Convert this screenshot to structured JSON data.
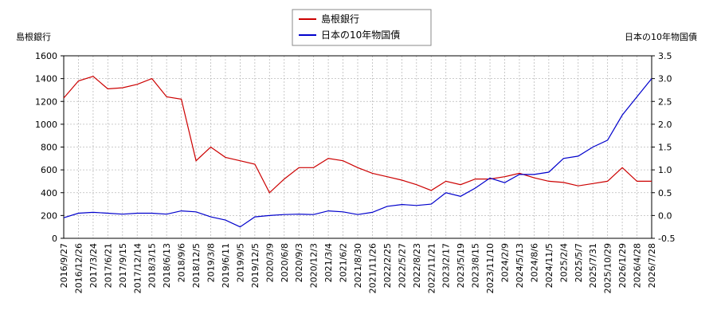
{
  "chart_data": {
    "type": "line",
    "y_label": "島根銀行",
    "y2_label": "日本の10年物国債",
    "categories": [
      "2016/9/27",
      "2016/12/26",
      "2017/3/24",
      "2017/6/21",
      "2017/9/15",
      "2017/12/14",
      "2018/3/15",
      "2018/6/13",
      "2018/9/6",
      "2018/12/5",
      "2019/3/8",
      "2019/6/11",
      "2019/9/5",
      "2019/12/5",
      "2020/3/9",
      "2020/6/8",
      "2020/9/3",
      "2020/12/3",
      "2021/3/4",
      "2021/6/2",
      "2021/8/30",
      "2021/11/26",
      "2022/2/25",
      "2022/5/27",
      "2022/8/23",
      "2022/11/21",
      "2023/2/17",
      "2023/5/19",
      "2023/8/15",
      "2023/11/10",
      "2024/2/9",
      "2024/5/13",
      "2024/8/6",
      "2024/11/5",
      "2025/2/4",
      "2025/5/7",
      "2025/7/31",
      "2025/10/29",
      "2026/1/29",
      "2026/4/28",
      "2026/7/28"
    ],
    "series": [
      {
        "name": "島根銀行",
        "color": "#cc0000",
        "values": [
          1230,
          1380,
          1420,
          1310,
          1320,
          1350,
          1400,
          1240,
          1220,
          680,
          800,
          710,
          680,
          650,
          400,
          520,
          620,
          620,
          700,
          680,
          620,
          570,
          540,
          510,
          470,
          420,
          500,
          470,
          520,
          520,
          540,
          570,
          530,
          500,
          490,
          460,
          480,
          500,
          620,
          500,
          500
        ]
      },
      {
        "name": "日本の10年物国債",
        "color": "#0000cc",
        "axis": "y2",
        "values": [
          -0.05,
          0.05,
          0.07,
          0.05,
          0.03,
          0.05,
          0.05,
          0.03,
          0.1,
          0.08,
          -0.03,
          -0.1,
          -0.25,
          -0.03,
          0.0,
          0.02,
          0.03,
          0.02,
          0.1,
          0.08,
          0.02,
          0.07,
          0.2,
          0.24,
          0.22,
          0.25,
          0.5,
          0.42,
          0.6,
          0.82,
          0.72,
          0.9,
          0.9,
          0.95,
          1.25,
          1.3,
          1.5,
          1.65,
          2.2,
          2.6,
          3.0
        ]
      }
    ],
    "ylim": [
      0,
      1600
    ],
    "yticks": [
      0,
      200,
      400,
      600,
      800,
      1000,
      1200,
      1400,
      1600
    ],
    "y2lim": [
      -0.5,
      3.5
    ],
    "y2ticks": [
      -0.5,
      {
        "value": 0,
        "label": "0.0"
      },
      0.5,
      {
        "value": 1,
        "label": "1.0"
      },
      1.5,
      {
        "value": 2,
        "label": "2.0"
      },
      2.5,
      {
        "value": 3,
        "label": "3.0"
      },
      3.5
    ],
    "grid": true
  }
}
